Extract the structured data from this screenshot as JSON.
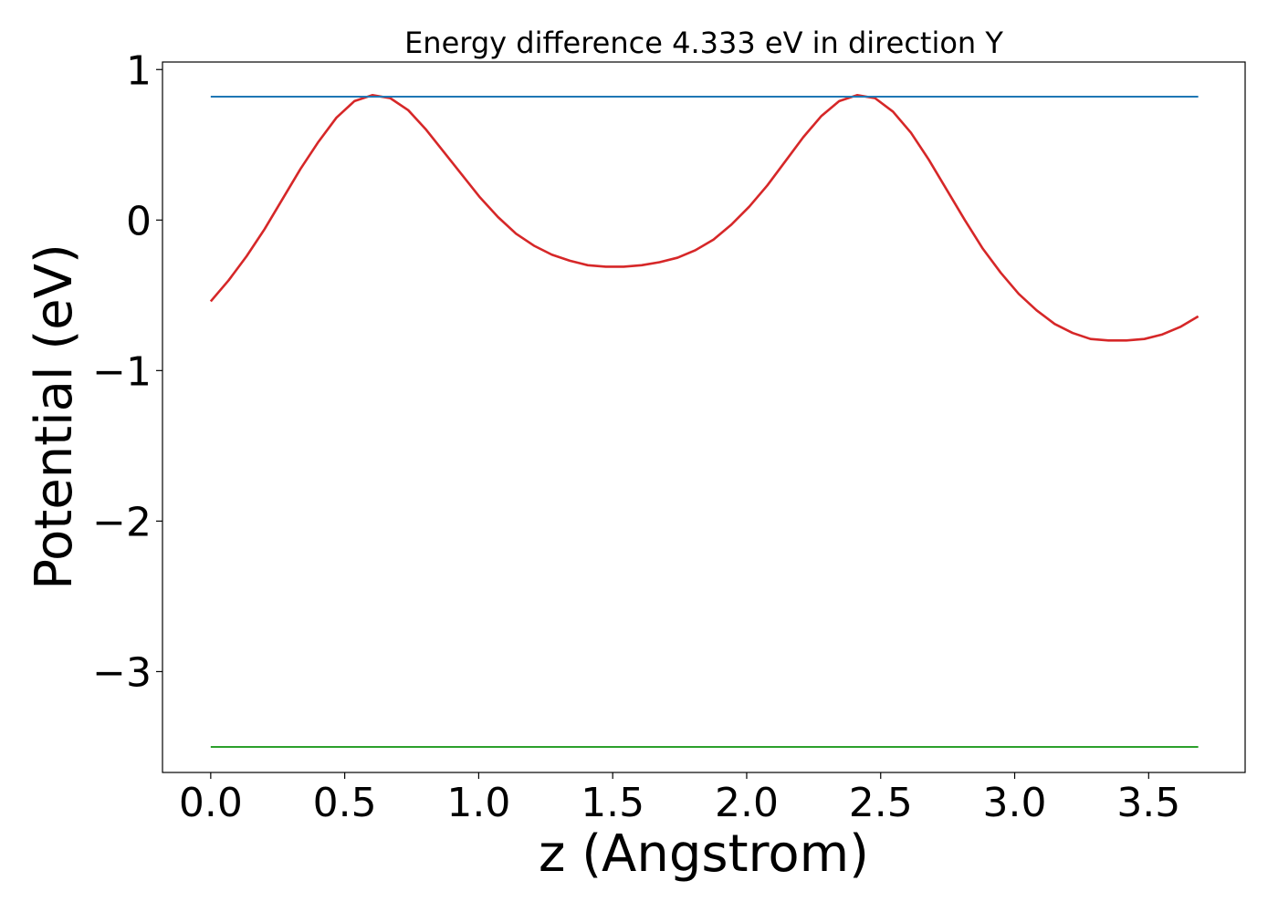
{
  "chart_data": {
    "type": "line",
    "title": "Energy difference 4.333 eV in direction Y",
    "xlabel": "z (Angstrom)",
    "ylabel": "Potential (eV)",
    "xlim": [
      -0.18,
      3.86
    ],
    "ylim": [
      -3.67,
      1.05
    ],
    "xticks": [
      0.0,
      0.5,
      1.0,
      1.5,
      2.0,
      2.5,
      3.0,
      3.5
    ],
    "xtick_labels": [
      "0.0",
      "0.5",
      "1.0",
      "1.5",
      "2.0",
      "2.5",
      "3.0",
      "3.5"
    ],
    "yticks": [
      1,
      0,
      -1,
      -2,
      -3
    ],
    "ytick_labels": [
      "1",
      "0",
      "−1",
      "−2",
      "−3"
    ],
    "grid": false,
    "series": [
      {
        "color": "#d62728",
        "x": [
          0.0,
          0.067,
          0.134,
          0.201,
          0.268,
          0.335,
          0.402,
          0.469,
          0.536,
          0.603,
          0.67,
          0.737,
          0.804,
          0.871,
          0.938,
          1.005,
          1.072,
          1.139,
          1.206,
          1.273,
          1.34,
          1.407,
          1.474,
          1.541,
          1.608,
          1.675,
          1.742,
          1.809,
          1.876,
          1.943,
          2.01,
          2.077,
          2.144,
          2.211,
          2.278,
          2.345,
          2.412,
          2.479,
          2.546,
          2.613,
          2.68,
          2.747,
          2.814,
          2.881,
          2.948,
          3.015,
          3.082,
          3.149,
          3.216,
          3.283,
          3.35,
          3.417,
          3.484,
          3.551,
          3.618,
          3.685
        ],
        "y": [
          -0.54,
          -0.4,
          -0.24,
          -0.06,
          0.14,
          0.34,
          0.52,
          0.68,
          0.79,
          0.83,
          0.81,
          0.73,
          0.6,
          0.45,
          0.3,
          0.15,
          0.02,
          -0.09,
          -0.17,
          -0.23,
          -0.27,
          -0.3,
          -0.31,
          -0.31,
          -0.3,
          -0.28,
          -0.25,
          -0.2,
          -0.13,
          -0.03,
          0.09,
          0.23,
          0.39,
          0.55,
          0.69,
          0.79,
          0.83,
          0.81,
          0.72,
          0.58,
          0.4,
          0.2,
          0.0,
          -0.19,
          -0.35,
          -0.49,
          -0.6,
          -0.69,
          -0.75,
          -0.79,
          -0.8,
          -0.8,
          -0.79,
          -0.76,
          -0.71,
          -0.64
        ]
      },
      {
        "color": "#1f77b4",
        "x": [
          0.0,
          3.685
        ],
        "y": [
          0.82,
          0.82
        ]
      },
      {
        "color": "#2ca02c",
        "x": [
          0.0,
          3.685
        ],
        "y": [
          -3.5,
          -3.5
        ]
      }
    ]
  }
}
